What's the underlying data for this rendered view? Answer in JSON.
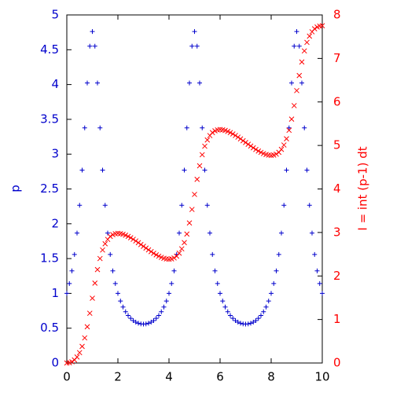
{
  "chart_data": {
    "type": "scatter",
    "x": [
      0,
      0.1,
      0.2,
      0.3,
      0.4,
      0.5,
      0.6,
      0.7,
      0.8,
      0.9,
      1,
      1.1,
      1.2,
      1.3,
      1.4,
      1.5,
      1.6,
      1.7,
      1.8,
      1.9,
      2,
      2.1,
      2.2,
      2.3,
      2.4,
      2.5,
      2.6,
      2.7,
      2.8,
      2.9,
      3,
      3.1,
      3.2,
      3.3,
      3.4,
      3.5,
      3.6,
      3.7,
      3.8,
      3.9,
      4,
      4.1,
      4.2,
      4.3,
      4.4,
      4.5,
      4.6,
      4.7,
      4.8,
      4.9,
      5,
      5.1,
      5.2,
      5.3,
      5.4,
      5.5,
      5.6,
      5.7,
      5.8,
      5.9,
      6,
      6.1,
      6.2,
      6.3,
      6.4,
      6.5,
      6.6,
      6.7,
      6.8,
      6.9,
      7,
      7.1,
      7.2,
      7.3,
      7.4,
      7.5,
      7.6,
      7.7,
      7.8,
      7.9,
      8,
      8.1,
      8.2,
      8.3,
      8.4,
      8.5,
      8.6,
      8.7,
      8.8,
      8.9,
      9,
      9.1,
      9.2,
      9.3,
      9.4,
      9.5,
      9.6,
      9.7,
      9.8,
      9.9,
      10
    ],
    "series": [
      {
        "name": "p",
        "color": "#0000cc",
        "marker": "plus",
        "axis": "y",
        "values": [
          1,
          1.141,
          1.323,
          1.559,
          1.867,
          2.266,
          2.771,
          3.377,
          4.022,
          4.552,
          4.762,
          4.552,
          4.022,
          3.377,
          2.771,
          2.266,
          1.867,
          1.559,
          1.323,
          1.141,
          1,
          0.89,
          0.804,
          0.736,
          0.683,
          0.642,
          0.61,
          0.587,
          0.571,
          0.562,
          0.559,
          0.562,
          0.571,
          0.587,
          0.61,
          0.642,
          0.683,
          0.736,
          0.804,
          0.89,
          1,
          1.141,
          1.323,
          1.559,
          1.867,
          2.266,
          2.771,
          3.377,
          4.022,
          4.552,
          4.762,
          4.552,
          4.022,
          3.377,
          2.771,
          2.266,
          1.867,
          1.559,
          1.323,
          1.141,
          1,
          0.89,
          0.804,
          0.736,
          0.683,
          0.642,
          0.61,
          0.587,
          0.571,
          0.562,
          0.559,
          0.562,
          0.571,
          0.587,
          0.61,
          0.642,
          0.683,
          0.736,
          0.804,
          0.89,
          1,
          1.141,
          1.323,
          1.559,
          1.867,
          2.266,
          2.771,
          3.377,
          4.022,
          4.552,
          4.762,
          4.552,
          4.022,
          3.377,
          2.771,
          2.266,
          1.867,
          1.559,
          1.323,
          1.141,
          1
        ]
      },
      {
        "name": "I = int (p-1) dt",
        "color": "#ff0000",
        "marker": "cross",
        "axis": "y2",
        "values": [
          0,
          0.007,
          0.028,
          0.07,
          0.138,
          0.238,
          0.382,
          0.577,
          0.833,
          1.143,
          1.489,
          1.835,
          2.146,
          2.401,
          2.597,
          2.741,
          2.841,
          2.909,
          2.95,
          2.972,
          2.979,
          2.973,
          2.959,
          2.937,
          2.91,
          2.878,
          2.843,
          2.805,
          2.765,
          2.723,
          2.682,
          2.641,
          2.6,
          2.56,
          2.522,
          2.486,
          2.455,
          2.428,
          2.406,
          2.392,
          2.386,
          2.393,
          2.414,
          2.456,
          2.524,
          2.624,
          2.768,
          2.964,
          3.219,
          3.529,
          3.875,
          4.221,
          4.532,
          4.787,
          4.983,
          5.127,
          5.227,
          5.295,
          5.336,
          5.358,
          5.365,
          5.359,
          5.345,
          5.323,
          5.296,
          5.264,
          5.229,
          5.191,
          5.151,
          5.109,
          5.068,
          5.027,
          4.986,
          4.946,
          4.908,
          4.872,
          4.841,
          4.814,
          4.792,
          4.778,
          4.772,
          4.779,
          4.8,
          4.842,
          4.91,
          5.01,
          5.154,
          5.349,
          5.605,
          5.915,
          6.261,
          6.607,
          6.918,
          7.173,
          7.369,
          7.513,
          7.613,
          7.681,
          7.722,
          7.744,
          7.751
        ]
      }
    ],
    "y_label": "p",
    "y2_label": "I = int (p-1) dt",
    "xlim": [
      0,
      10
    ],
    "xticks": [
      0,
      2,
      4,
      6,
      8,
      10
    ],
    "ylim": [
      0,
      5
    ],
    "yticks": [
      0,
      0.5,
      1,
      1.5,
      2,
      2.5,
      3,
      3.5,
      4,
      4.5,
      5
    ],
    "y2lim": [
      0,
      8
    ],
    "y2ticks": [
      0,
      1,
      2,
      3,
      4,
      5,
      6,
      7,
      8
    ]
  }
}
